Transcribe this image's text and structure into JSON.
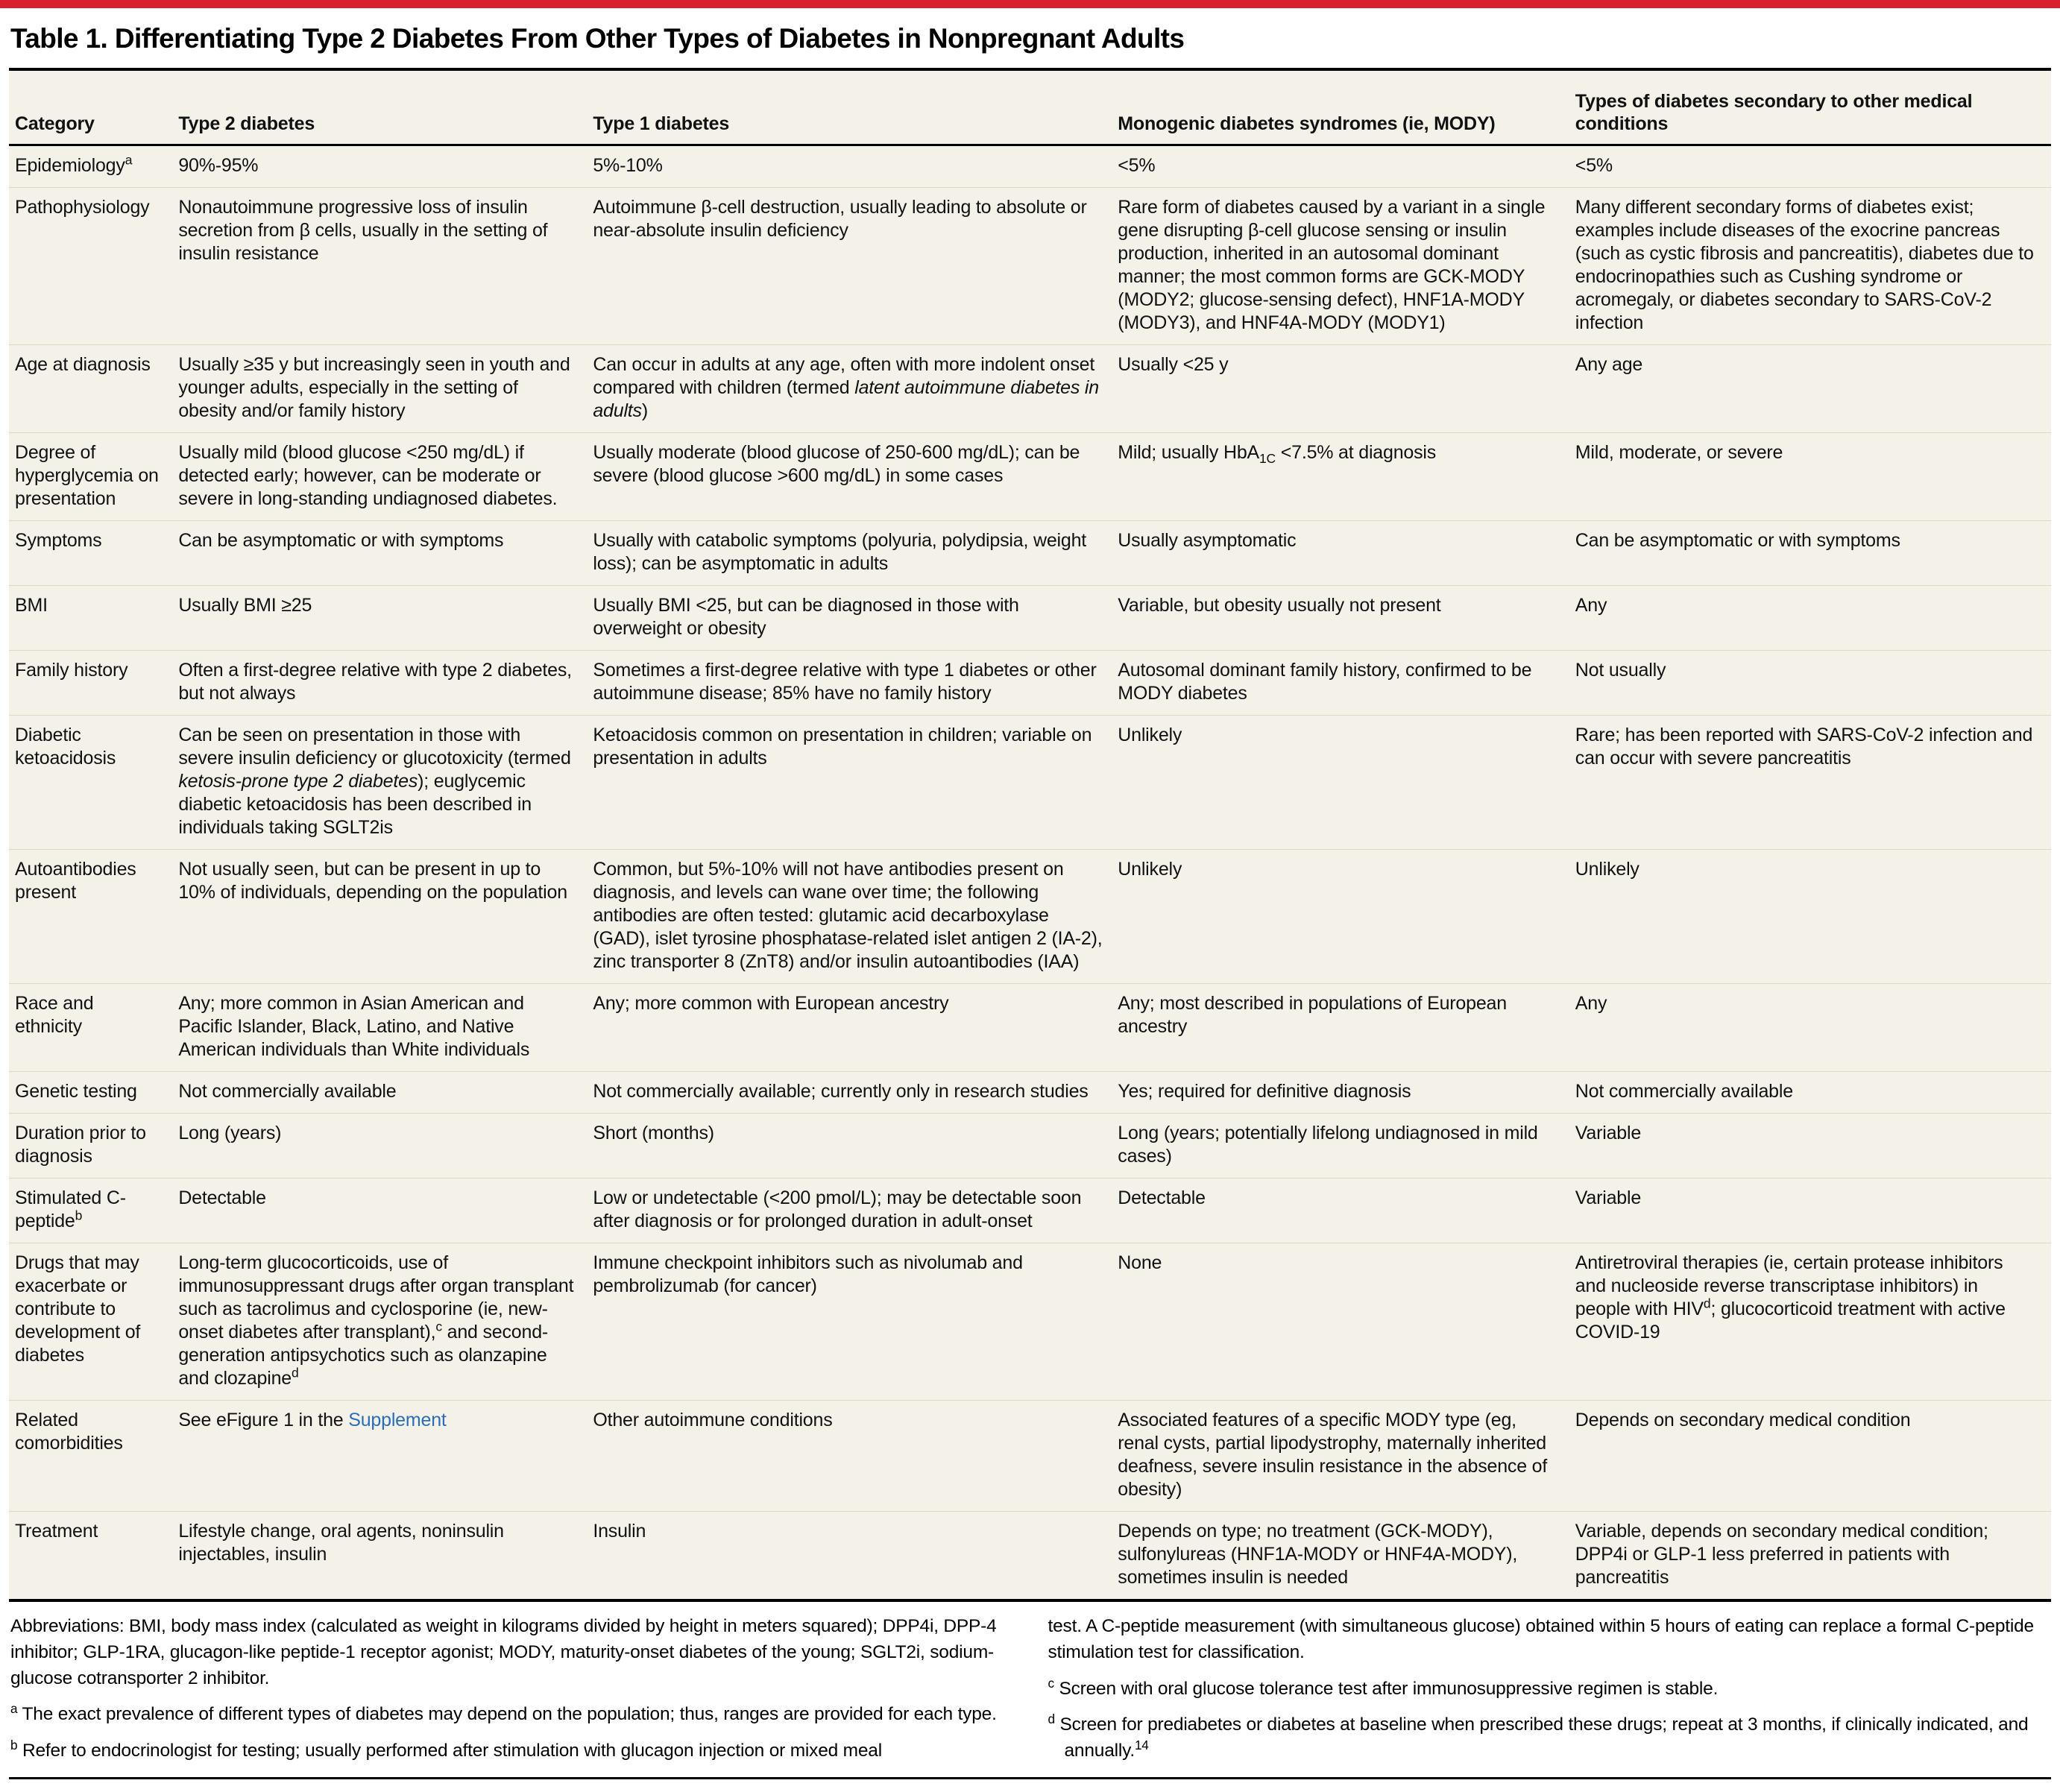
{
  "page": {
    "accent_color": "#da1f2e",
    "title": "Table 1. Differentiating Type 2 Diabetes From Other Types of Diabetes in Nonpregnant Adults"
  },
  "table": {
    "columns": [
      "Category",
      "Type 2 diabetes",
      "Type 1 diabetes",
      "Monogenic diabetes syndromes (ie, MODY)",
      "Types of diabetes secondary to other medical conditions"
    ],
    "rows": [
      {
        "category": "Epidemiology^{a}",
        "cells": [
          "90%-95%",
          "5%-10%",
          "<5%",
          "<5%"
        ]
      },
      {
        "category": "Pathophysiology",
        "cells": [
          "Nonautoimmune progressive loss of insulin secretion from β cells, usually in the setting of insulin resistance",
          "Autoimmune β-cell destruction, usually leading to absolute or near-absolute insulin deficiency",
          "Rare form of diabetes caused by a variant in a single gene disrupting β-cell glucose sensing or insulin production, inherited in an autosomal dominant manner; the most common forms are GCK-MODY (MODY2; glucose-sensing defect), HNF1A-MODY (MODY3), and HNF4A-MODY (MODY1)",
          "Many different secondary forms of diabetes exist; examples include diseases of the exocrine pancreas (such as cystic fibrosis and pancreatitis), diabetes due to endocrinopathies such as Cushing syndrome or acromegaly, or diabetes secondary to SARS-CoV-2 infection"
        ]
      },
      {
        "category": "Age at diagnosis",
        "cells": [
          "Usually ≥35 y but increasingly seen in youth and younger adults, especially in the setting of obesity and/or family history",
          "Can occur in adults at any age, often with more indolent onset compared with children (termed *latent autoimmune diabetes in adults*)",
          "Usually <25 y",
          "Any age"
        ]
      },
      {
        "category": "Degree of hyperglycemia on presentation",
        "cells": [
          "Usually mild (blood glucose <250 mg/dL) if detected early; however, can be moderate or severe in long-standing undiagnosed diabetes.",
          "Usually moderate (blood glucose of 250-600 mg/dL); can be severe (blood glucose >600 mg/dL) in some cases",
          "Mild; usually HbA_{1C} <7.5% at diagnosis",
          "Mild, moderate, or severe"
        ]
      },
      {
        "category": "Symptoms",
        "cells": [
          "Can be asymptomatic or with symptoms",
          "Usually with catabolic symptoms (polyuria, polydipsia, weight loss); can be asymptomatic in adults",
          "Usually asymptomatic",
          "Can be asymptomatic or with symptoms"
        ]
      },
      {
        "category": "BMI",
        "cells": [
          "Usually BMI ≥25",
          "Usually BMI <25, but can be diagnosed in those with overweight or obesity",
          "Variable, but obesity usually not present",
          "Any"
        ]
      },
      {
        "category": "Family history",
        "cells": [
          "Often a first-degree relative with type 2 diabetes, but not always",
          "Sometimes a first-degree relative with type 1 diabetes or other autoimmune disease; 85% have no family history",
          "Autosomal dominant family history, confirmed to be MODY diabetes",
          "Not usually"
        ]
      },
      {
        "category": "Diabetic ketoacidosis",
        "cells": [
          "Can be seen on presentation in those with severe insulin deficiency or glucotoxicity (termed *ketosis-prone type 2 diabetes*); euglycemic diabetic ketoacidosis has been described in individuals taking SGLT2is",
          "Ketoacidosis common on presentation in children; variable on presentation in adults",
          "Unlikely",
          "Rare; has been reported with SARS-CoV-2 infection and can occur with severe pancreatitis"
        ]
      },
      {
        "category": "Autoantibodies present",
        "cells": [
          "Not usually seen, but can be present in up to 10% of individuals, depending on the population",
          "Common, but 5%-10% will not have antibodies present on diagnosis, and levels can wane over time; the following antibodies are often tested: glutamic acid decarboxylase (GAD), islet tyrosine phosphatase-related islet antigen 2 (IA-2), zinc transporter 8 (ZnT8) and/or insulin autoantibodies (IAA)",
          "Unlikely",
          "Unlikely"
        ]
      },
      {
        "category": "Race and ethnicity",
        "cells": [
          "Any; more common in Asian American and Pacific Islander, Black, Latino, and Native American individuals than White individuals",
          "Any; more common with European ancestry",
          "Any; most described in populations of European ancestry",
          "Any"
        ]
      },
      {
        "category": "Genetic testing",
        "cells": [
          "Not commercially available",
          "Not commercially available; currently only in research studies",
          "Yes; required for definitive diagnosis",
          "Not commercially available"
        ]
      },
      {
        "category": "Duration prior to diagnosis",
        "cells": [
          "Long (years)",
          "Short (months)",
          "Long (years; potentially lifelong undiagnosed in mild cases)",
          "Variable"
        ]
      },
      {
        "category": "Stimulated C-peptide^{b}",
        "cells": [
          "Detectable",
          "Low or undetectable (<200 pmol/L); may be detectable soon after diagnosis or for prolonged duration in adult-onset",
          "Detectable",
          "Variable"
        ]
      },
      {
        "category": "Drugs that may exacerbate or contribute to development of diabetes",
        "cells": [
          "Long-term glucocorticoids, use of immunosuppressant drugs after organ transplant such as tacrolimus and cyclosporine (ie, new-onset diabetes after transplant),^{c} and second-generation antipsychotics such as olanzapine and clozapine^{d}",
          "Immune checkpoint inhibitors such as nivolumab and pembrolizumab (for cancer)",
          "None",
          "Antiretroviral therapies (ie, certain protease inhibitors and nucleoside reverse transcriptase inhibitors) in people with HIV^{d}; glucocorticoid treatment with active COVID-19"
        ]
      },
      {
        "category": "Related comorbidities",
        "cells": [
          "See eFigure 1 in the [Supplement]",
          "Other autoimmune conditions",
          "Associated features of a specific MODY type (eg, renal cysts, partial lipodystrophy, maternally inherited deafness, severe insulin resistance in the absence of obesity)",
          "Depends on secondary medical condition"
        ]
      },
      {
        "category": "Treatment",
        "cells": [
          "Lifestyle change, oral agents, noninsulin injectables, insulin",
          "Insulin",
          "Depends on type; no treatment (GCK-MODY), sulfonylureas (HNF1A-MODY or HNF4A-MODY), sometimes insulin is needed",
          "Variable, depends on secondary medical condition; DPP4i or GLP-1 less preferred in patients with pancreatitis"
        ]
      }
    ]
  },
  "footnotes": {
    "left": [
      {
        "marker": "",
        "text": "Abbreviations: BMI, body mass index (calculated as weight in kilograms divided by height in meters squared); DPP4i, DPP-4 inhibitor; GLP-1RA, glucagon-like peptide-1 receptor agonist; MODY, maturity-onset diabetes of the young; SGLT2i, sodium-glucose cotransporter 2 inhibitor."
      },
      {
        "marker": "a",
        "text": "The exact prevalence of different types of diabetes may depend on the population; thus, ranges are provided for each type."
      },
      {
        "marker": "b",
        "text": "Refer to endocrinologist for testing; usually performed after stimulation with glucagon injection or mixed meal"
      }
    ],
    "right": [
      {
        "marker": "",
        "text": "test. A C-peptide measurement (with simultaneous glucose) obtained within 5 hours of eating can replace a formal C-peptide stimulation test for classification."
      },
      {
        "marker": "c",
        "text": "Screen with oral glucose tolerance test after immunosuppressive regimen is stable."
      },
      {
        "marker": "d",
        "text": "Screen for prediabetes or diabetes at baseline when prescribed these drugs; repeat at 3 months, if clinically indicated, and annually.^{14}"
      }
    ]
  }
}
